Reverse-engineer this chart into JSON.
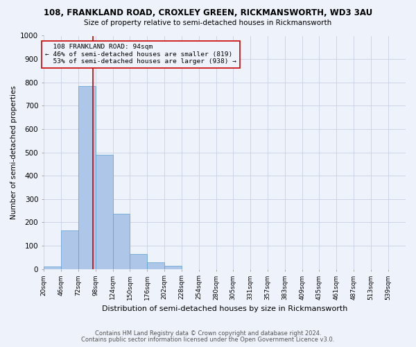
{
  "title1": "108, FRANKLAND ROAD, CROXLEY GREEN, RICKMANSWORTH, WD3 3AU",
  "title2": "Size of property relative to semi-detached houses in Rickmansworth",
  "xlabel": "Distribution of semi-detached houses by size in Rickmansworth",
  "ylabel": "Number of semi-detached properties",
  "bar_values": [
    10,
    165,
    785,
    490,
    238,
    63,
    28,
    15,
    0,
    0,
    0,
    0,
    0,
    0,
    0,
    0,
    0,
    0,
    0
  ],
  "bin_labels": [
    "20sqm",
    "46sqm",
    "72sqm",
    "98sqm",
    "124sqm",
    "150sqm",
    "176sqm",
    "202sqm",
    "228sqm",
    "254sqm",
    "280sqm",
    "305sqm",
    "331sqm",
    "357sqm",
    "383sqm",
    "409sqm",
    "435sqm",
    "461sqm",
    "487sqm",
    "513sqm",
    "539sqm"
  ],
  "bin_edges": [
    20,
    46,
    72,
    98,
    124,
    150,
    176,
    202,
    228,
    254,
    280,
    305,
    331,
    357,
    383,
    409,
    435,
    461,
    487,
    513,
    539
  ],
  "property_value": 94,
  "property_label": "108 FRANKLAND ROAD: 94sqm",
  "pct_smaller": 46,
  "pct_larger": 53,
  "n_smaller": 819,
  "n_larger": 938,
  "bar_color": "#aec6e8",
  "bar_edge_color": "#5a9fd4",
  "vline_color": "#cc0000",
  "annotation_box_color": "#cc0000",
  "bg_color": "#eef2fb",
  "grid_color": "#c8d0e0",
  "ylim": [
    0,
    1000
  ],
  "yticks": [
    0,
    100,
    200,
    300,
    400,
    500,
    600,
    700,
    800,
    900,
    1000
  ],
  "footer1": "Contains HM Land Registry data © Crown copyright and database right 2024.",
  "footer2": "Contains public sector information licensed under the Open Government Licence v3.0."
}
